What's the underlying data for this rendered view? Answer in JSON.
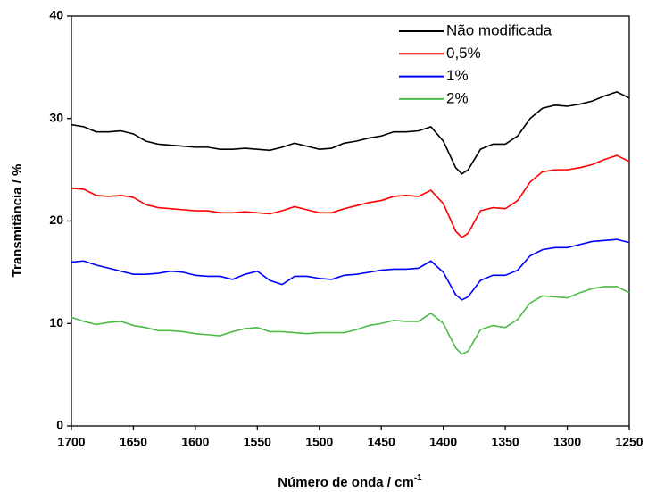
{
  "chart_data": {
    "type": "line",
    "xlabel": "Número de onda / cm",
    "xlabel_superscript": "-1",
    "ylabel": "Transmitância / %",
    "x": [
      1700,
      1690,
      1680,
      1670,
      1660,
      1650,
      1640,
      1630,
      1620,
      1610,
      1600,
      1590,
      1580,
      1570,
      1560,
      1550,
      1540,
      1530,
      1520,
      1510,
      1500,
      1490,
      1480,
      1470,
      1460,
      1450,
      1440,
      1430,
      1420,
      1410,
      1400,
      1390,
      1385,
      1380,
      1370,
      1360,
      1350,
      1340,
      1330,
      1320,
      1310,
      1300,
      1290,
      1280,
      1270,
      1260,
      1250
    ],
    "series": [
      {
        "name": "Não modificada",
        "color": "#000000",
        "values": [
          29.4,
          29.2,
          28.7,
          28.7,
          28.8,
          28.5,
          27.8,
          27.5,
          27.4,
          27.3,
          27.2,
          27.2,
          27.0,
          27.0,
          27.1,
          27.0,
          26.9,
          27.2,
          27.6,
          27.3,
          27.0,
          27.1,
          27.6,
          27.8,
          28.1,
          28.3,
          28.7,
          28.7,
          28.8,
          29.2,
          27.8,
          25.2,
          24.6,
          25.0,
          27.0,
          27.5,
          27.5,
          28.3,
          30.0,
          31.0,
          31.3,
          31.2,
          31.4,
          31.7,
          32.2,
          32.6,
          32.0
        ]
      },
      {
        "name": "0,5%",
        "color": "#ff0000",
        "values": [
          23.2,
          23.1,
          22.5,
          22.4,
          22.5,
          22.3,
          21.6,
          21.3,
          21.2,
          21.1,
          21.0,
          21.0,
          20.8,
          20.8,
          20.9,
          20.8,
          20.7,
          21.0,
          21.4,
          21.1,
          20.8,
          20.8,
          21.2,
          21.5,
          21.8,
          22.0,
          22.4,
          22.5,
          22.4,
          23.0,
          21.7,
          19.0,
          18.4,
          18.8,
          21.0,
          21.3,
          21.2,
          22.0,
          23.8,
          24.8,
          25.0,
          25.0,
          25.2,
          25.5,
          26.0,
          26.4,
          25.8
        ]
      },
      {
        "name": "1%",
        "color": "#0000ff",
        "values": [
          16.0,
          16.1,
          15.7,
          15.4,
          15.1,
          14.8,
          14.8,
          14.9,
          15.1,
          15.0,
          14.7,
          14.6,
          14.6,
          14.3,
          14.8,
          15.1,
          14.2,
          13.8,
          14.6,
          14.6,
          14.4,
          14.3,
          14.7,
          14.8,
          15.0,
          15.2,
          15.3,
          15.3,
          15.4,
          16.1,
          15.0,
          12.8,
          12.3,
          12.6,
          14.2,
          14.7,
          14.7,
          15.2,
          16.6,
          17.2,
          17.4,
          17.4,
          17.7,
          18.0,
          18.1,
          18.2,
          17.9
        ]
      },
      {
        "name": "2%",
        "color": "#4cbb47",
        "values": [
          10.6,
          10.2,
          9.9,
          10.1,
          10.2,
          9.8,
          9.6,
          9.3,
          9.3,
          9.2,
          9.0,
          8.9,
          8.8,
          9.2,
          9.5,
          9.6,
          9.2,
          9.2,
          9.1,
          9.0,
          9.1,
          9.1,
          9.1,
          9.4,
          9.8,
          10.0,
          10.3,
          10.2,
          10.2,
          11.0,
          10.0,
          7.6,
          7.0,
          7.3,
          9.4,
          9.8,
          9.6,
          10.4,
          12.0,
          12.7,
          12.6,
          12.5,
          13.0,
          13.4,
          13.6,
          13.6,
          13.0
        ]
      }
    ],
    "xlim": [
      1700,
      1250
    ],
    "xticks": [
      1700,
      1650,
      1600,
      1550,
      1500,
      1450,
      1400,
      1350,
      1300,
      1250
    ],
    "ylim": [
      0,
      40
    ],
    "yticks": [
      0,
      10,
      20,
      30,
      40
    ],
    "legend": "upper right"
  }
}
